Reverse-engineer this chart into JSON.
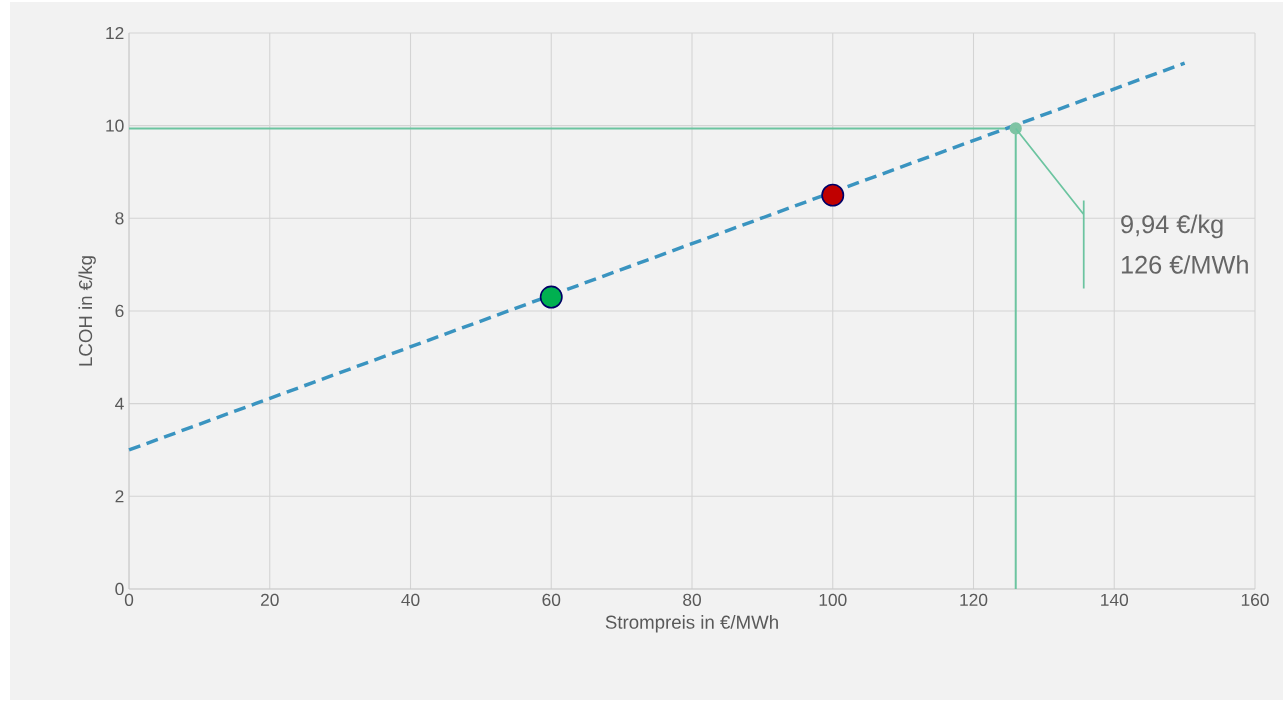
{
  "chart_data": {
    "type": "line",
    "xlabel": "Strompreis in €/MWh",
    "ylabel": "LCOH in €/kg",
    "xlim": [
      0,
      160
    ],
    "xticks": [
      0,
      20,
      40,
      60,
      80,
      100,
      120,
      140,
      160
    ],
    "ylim": [
      0,
      12
    ],
    "yticks": [
      0,
      2,
      4,
      6,
      8,
      10,
      12
    ],
    "grid": true,
    "series": [
      {
        "color": "#3a94c0",
        "line_style": "dashed",
        "marker": "none",
        "x": [
          0,
          150
        ],
        "values": [
          3.0,
          11.35
        ]
      },
      {
        "type": "scatter",
        "color": "#00b050",
        "marker": "circle",
        "x": [
          60
        ],
        "values": [
          6.3
        ]
      },
      {
        "type": "scatter",
        "color": "#c00000",
        "marker": "circle",
        "x": [
          100
        ],
        "values": [
          8.5
        ]
      },
      {
        "type": "scatter",
        "color": "#7fc4a4",
        "marker": "circle",
        "x": [
          126
        ],
        "values": [
          9.94
        ]
      }
    ],
    "ref_lines": [
      {
        "axis": "y",
        "value": 9.94,
        "color": "#6cc4a0"
      },
      {
        "axis": "x",
        "value": 126,
        "color": "#6cc4a0"
      }
    ],
    "annotations": [
      "9,94 €/kg",
      "126 €/MWh"
    ]
  }
}
